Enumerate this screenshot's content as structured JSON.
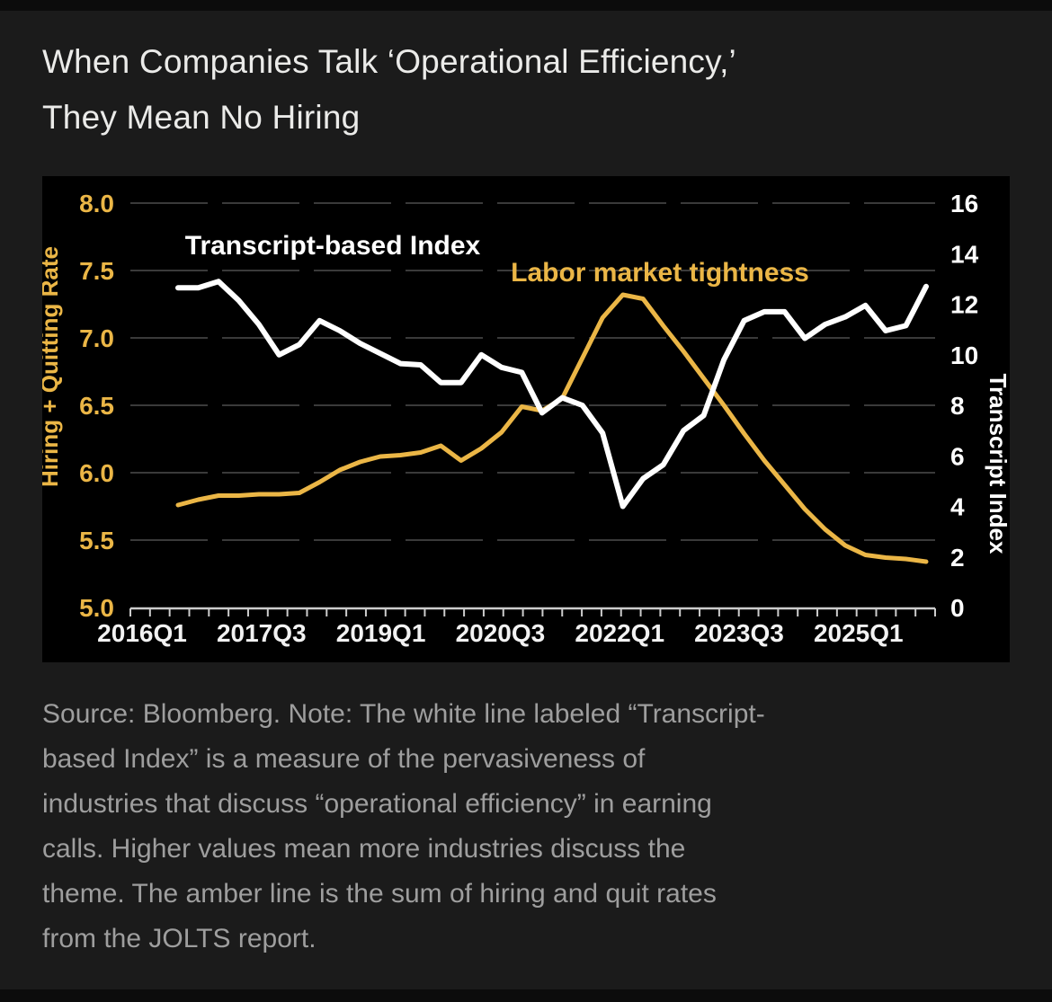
{
  "header": {
    "title_lines": [
      "When Companies Talk ‘Operational Efficiency,’",
      "They Mean No Hiring"
    ]
  },
  "source": {
    "lines": [
      "Source: Bloomberg. Note: The white line labeled “Transcript-",
      "based Index” is a measure of the pervasiveness of",
      "industries that discuss “operational efficiency” in earning",
      "calls. Higher values mean more industries discuss the",
      "theme. The amber line is the sum of hiring and quit rates",
      "from the JOLTS report."
    ]
  },
  "colors": {
    "amber": "#EBB646",
    "white": "#FFFFFF",
    "grid": "#3a3a3a",
    "axis": "#cccccc",
    "x_label": "#f2f2f2",
    "chart_bg": "#000000",
    "page_bg": "#1b1b1b",
    "title_text": "#ebebe9",
    "source_text": "#9e9e9e"
  },
  "chart_data": {
    "type": "line",
    "x_tick_labels": [
      "2016Q1",
      "2017Q3",
      "2019Q1",
      "2020Q3",
      "2022Q1",
      "2023Q3",
      "2025Q1"
    ],
    "left_axis": {
      "label": "Hiring + Quitting Rate",
      "ticks": [
        "8.0",
        "7.5",
        "7.0",
        "6.5",
        "6.0",
        "5.5",
        "5.0"
      ],
      "tick_values": [
        8.0,
        7.5,
        7.0,
        6.5,
        6.0,
        5.5,
        5.0
      ],
      "min": 5.0,
      "max": 8.0
    },
    "right_axis": {
      "label": "Transcript Index",
      "ticks": [
        "16",
        "14",
        "12",
        "10",
        "8",
        "6",
        "4",
        "2",
        "0"
      ],
      "tick_values": [
        16,
        14,
        12,
        10,
        8,
        6,
        4,
        2,
        0
      ],
      "min": 0,
      "max": 16
    },
    "gridline_values_left_axis": [
      8.0,
      7.5,
      7.0,
      6.5,
      6.0,
      5.5
    ],
    "series": [
      {
        "name": "Labor market tightness",
        "axis": "left",
        "color": "#EBB646",
        "label_anchor": {
          "x": 687,
          "y": 117
        },
        "values": [
          5.76,
          5.8,
          5.83,
          5.83,
          5.84,
          5.84,
          5.85,
          5.93,
          6.02,
          6.08,
          6.12,
          6.13,
          6.15,
          6.2,
          6.09,
          6.18,
          6.3,
          6.49,
          6.46,
          6.55,
          6.85,
          7.15,
          7.32,
          7.29,
          7.09,
          6.9,
          6.7,
          6.5,
          6.29,
          6.09,
          5.91,
          5.73,
          5.58,
          5.46,
          5.39,
          5.37,
          5.36,
          5.34
        ]
      },
      {
        "name": "Transcript-based Index",
        "axis": "right",
        "color": "#FFFFFF",
        "label_anchor": {
          "x": 323,
          "y": 87
        },
        "values": [
          12.65,
          12.65,
          12.9,
          12.15,
          11.2,
          10.0,
          10.4,
          11.35,
          10.95,
          10.45,
          10.05,
          9.65,
          9.6,
          8.9,
          8.9,
          10.0,
          9.5,
          9.3,
          7.7,
          8.3,
          8.0,
          6.9,
          4.0,
          5.1,
          5.65,
          7.0,
          7.6,
          9.8,
          11.35,
          11.7,
          11.7,
          10.65,
          11.2,
          11.5,
          11.95,
          10.95,
          11.15,
          12.7
        ]
      }
    ],
    "x_first_period": "2016Q1",
    "x_period_step": "quarter",
    "legend_position": "inline-labels",
    "grid": "horizontal-dashed"
  }
}
